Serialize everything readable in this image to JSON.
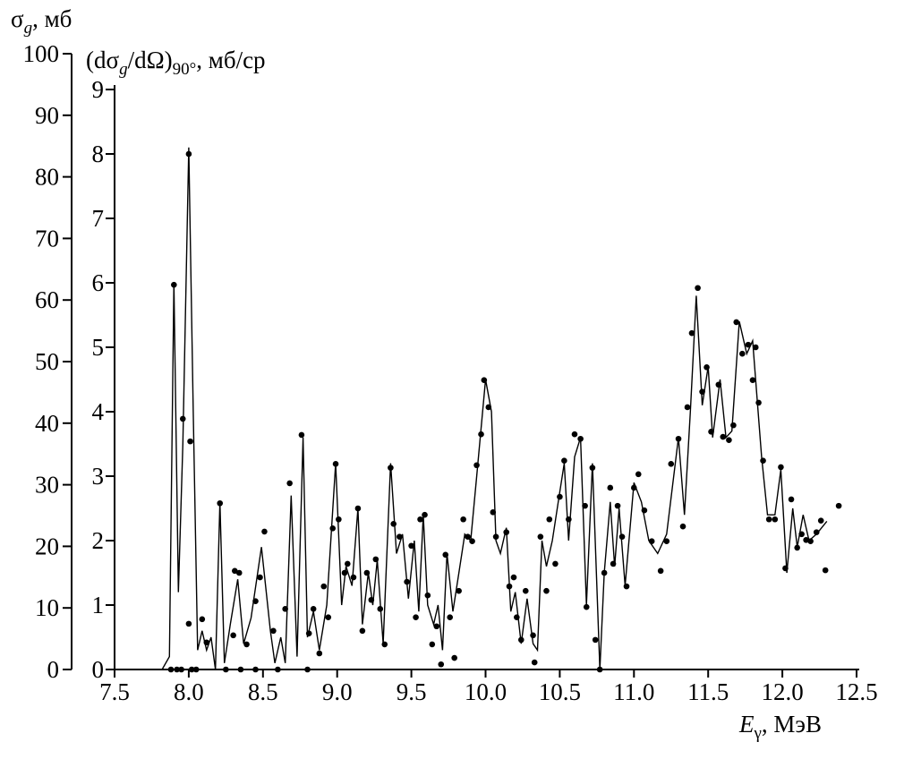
{
  "chart_data": {
    "type": "line",
    "y2_label": [
      "σ",
      "g",
      ", мб"
    ],
    "y_label": [
      "(d",
      "σ",
      "g",
      "/d",
      "Ω)",
      "90°",
      ", мб/ср"
    ],
    "x_label": [
      "E",
      "γ",
      ", МэВ"
    ],
    "xlim": [
      7.5,
      12.5
    ],
    "xticks": [
      7.5,
      {
        "value": 8,
        "label": "8.0"
      },
      8.5,
      {
        "value": 9,
        "label": "9.0"
      },
      9.5,
      {
        "value": 10,
        "label": "10.0"
      },
      10.5,
      {
        "value": 11,
        "label": "11.0"
      },
      11.5,
      {
        "value": 12,
        "label": "12.0"
      },
      12.5
    ],
    "ylim": [
      0,
      9
    ],
    "yticks": [
      0,
      1,
      2,
      3,
      4,
      5,
      6,
      7,
      8,
      9
    ],
    "y2lim": [
      0,
      100
    ],
    "y2ticks": [
      0,
      10,
      20,
      30,
      40,
      50,
      60,
      70,
      80,
      90,
      100
    ],
    "series": [
      {
        "style": "line",
        "color": "#000000",
        "x": [
          7.82,
          7.87,
          7.9,
          7.93,
          7.96,
          8.0,
          8.03,
          8.06,
          8.09,
          8.12,
          8.15,
          8.18,
          8.21,
          8.24,
          8.28,
          8.33,
          8.37,
          8.42,
          8.49,
          8.55,
          8.58,
          8.62,
          8.65,
          8.69,
          8.73,
          8.77,
          8.8,
          8.84,
          8.88,
          8.93,
          8.99,
          9.03,
          9.06,
          9.1,
          9.14,
          9.17,
          9.21,
          9.24,
          9.27,
          9.31,
          9.36,
          9.4,
          9.44,
          9.48,
          9.52,
          9.55,
          9.58,
          9.61,
          9.65,
          9.68,
          9.71,
          9.74,
          9.78,
          9.82,
          9.86,
          9.9,
          9.94,
          10.0,
          10.04,
          10.07,
          10.1,
          10.14,
          10.17,
          10.2,
          10.24,
          10.28,
          10.32,
          10.35,
          10.38,
          10.41,
          10.45,
          10.49,
          10.53,
          10.56,
          10.6,
          10.64,
          10.68,
          10.72,
          10.77,
          10.8,
          10.84,
          10.87,
          10.9,
          10.94,
          11.0,
          11.05,
          11.1,
          11.16,
          11.22,
          11.3,
          11.34,
          11.38,
          11.42,
          11.46,
          11.5,
          11.53,
          11.58,
          11.62,
          11.66,
          11.71,
          11.76,
          11.8,
          11.86,
          11.9,
          11.95,
          11.99,
          12.03,
          12.07,
          12.1,
          12.14,
          12.18,
          12.23,
          12.3
        ],
        "values": [
          0,
          0.2,
          6.0,
          1.2,
          3.5,
          8.1,
          4,
          0.3,
          0.6,
          0.3,
          0.5,
          0,
          2.6,
          0.1,
          0.7,
          1.4,
          0.4,
          0.8,
          1.9,
          0.6,
          0.1,
          0.5,
          0.1,
          2.7,
          0.2,
          3.6,
          0.5,
          0.9,
          0.3,
          1.0,
          3.2,
          1.0,
          1.6,
          1.3,
          2.5,
          0.7,
          1.5,
          1.0,
          1.7,
          0.4,
          3.2,
          1.8,
          2.1,
          1.1,
          2.0,
          0.9,
          2.4,
          1.0,
          0.7,
          1.0,
          0.3,
          1.8,
          0.9,
          1.5,
          2.1,
          2.0,
          3.0,
          4.5,
          4.0,
          2.0,
          1.8,
          2.2,
          0.9,
          1.2,
          0.4,
          1.1,
          0.4,
          0.3,
          2.0,
          1.6,
          2.0,
          2.6,
          3.2,
          2.0,
          3.3,
          3.6,
          1.0,
          3.2,
          0,
          1.5,
          2.6,
          1.6,
          2.5,
          1.3,
          2.9,
          2.6,
          2.0,
          1.8,
          2.1,
          3.6,
          2.4,
          4.0,
          5.8,
          4.1,
          4.7,
          3.6,
          4.5,
          3.6,
          3.7,
          5.4,
          4.9,
          5.1,
          3.3,
          2.4,
          2.4,
          3.1,
          1.5,
          2.5,
          1.9,
          2.4,
          2.0,
          2.1,
          2.3
        ]
      },
      {
        "style": "points",
        "color": "#000000",
        "x": [
          7.9,
          7.96,
          8.0,
          8.01,
          8.0,
          8.09,
          8.12,
          8.21,
          8.3,
          8.31,
          8.34,
          8.39,
          8.45,
          8.48,
          8.51,
          8.57,
          8.65,
          8.68,
          8.76,
          8.81,
          8.84,
          8.88,
          8.91,
          8.94,
          8.97,
          8.99,
          9.01,
          9.05,
          9.07,
          9.11,
          9.14,
          9.17,
          9.2,
          9.23,
          9.26,
          9.29,
          9.32,
          9.36,
          9.38,
          9.42,
          9.47,
          9.5,
          9.53,
          9.56,
          9.59,
          9.61,
          9.64,
          9.67,
          9.7,
          9.73,
          9.76,
          9.79,
          9.82,
          9.85,
          9.88,
          9.91,
          9.94,
          9.97,
          9.99,
          10.02,
          10.05,
          10.07,
          10.14,
          10.16,
          10.19,
          10.21,
          10.24,
          10.27,
          10.32,
          10.33,
          10.37,
          10.41,
          10.43,
          10.47,
          10.5,
          10.53,
          10.56,
          10.6,
          10.64,
          10.67,
          10.68,
          10.72,
          10.74,
          10.77,
          10.8,
          10.84,
          10.86,
          10.89,
          10.92,
          10.95,
          11.0,
          11.03,
          11.07,
          11.12,
          11.18,
          11.22,
          11.25,
          11.3,
          11.33,
          11.36,
          11.39,
          11.43,
          11.46,
          11.49,
          11.52,
          11.57,
          11.6,
          11.64,
          11.67,
          11.69,
          11.73,
          11.77,
          11.8,
          11.82,
          11.84,
          11.87,
          11.91,
          11.95,
          11.99,
          12.02,
          12.06,
          12.1,
          12.13,
          12.16,
          12.19,
          12.23,
          12.26,
          12.29,
          12.38,
          7.88,
          7.92,
          7.95,
          8.02,
          8.05,
          8.25,
          8.35,
          8.45,
          8.6,
          8.8
        ],
        "values": [
          5.97,
          3.89,
          8.0,
          3.54,
          0.71,
          0.78,
          0.42,
          2.58,
          0.53,
          1.53,
          1.5,
          0.39,
          1.06,
          1.43,
          2.14,
          0.6,
          0.94,
          2.89,
          3.64,
          0.56,
          0.94,
          0.25,
          1.29,
          0.81,
          2.19,
          3.19,
          2.33,
          1.5,
          1.64,
          1.43,
          2.5,
          0.6,
          1.5,
          1.08,
          1.71,
          0.94,
          0.39,
          3.13,
          2.26,
          2.06,
          1.36,
          1.92,
          0.81,
          2.33,
          2.4,
          1.15,
          0.39,
          0.67,
          0.08,
          1.78,
          0.81,
          0.18,
          1.22,
          2.33,
          2.06,
          1.99,
          3.17,
          3.65,
          4.49,
          4.07,
          2.44,
          2.06,
          2.13,
          1.29,
          1.43,
          0.81,
          0.46,
          1.22,
          0.53,
          0.11,
          2.06,
          1.22,
          2.33,
          1.64,
          2.68,
          3.24,
          2.33,
          3.65,
          3.58,
          2.54,
          0.97,
          3.13,
          0.46,
          0,
          1.5,
          2.82,
          1.64,
          2.54,
          2.06,
          1.29,
          2.82,
          3.03,
          2.47,
          1.99,
          1.53,
          1.99,
          3.19,
          3.58,
          2.22,
          4.07,
          5.22,
          5.92,
          4.31,
          4.69,
          3.69,
          4.42,
          3.61,
          3.56,
          3.79,
          5.39,
          4.9,
          5.04,
          4.49,
          5.0,
          4.14,
          3.24,
          2.33,
          2.33,
          3.14,
          1.57,
          2.64,
          1.89,
          2.1,
          2.01,
          1.99,
          2.13,
          2.31,
          1.54,
          2.54,
          0,
          0,
          0,
          0,
          0,
          0,
          0,
          0,
          0,
          0
        ]
      }
    ]
  }
}
